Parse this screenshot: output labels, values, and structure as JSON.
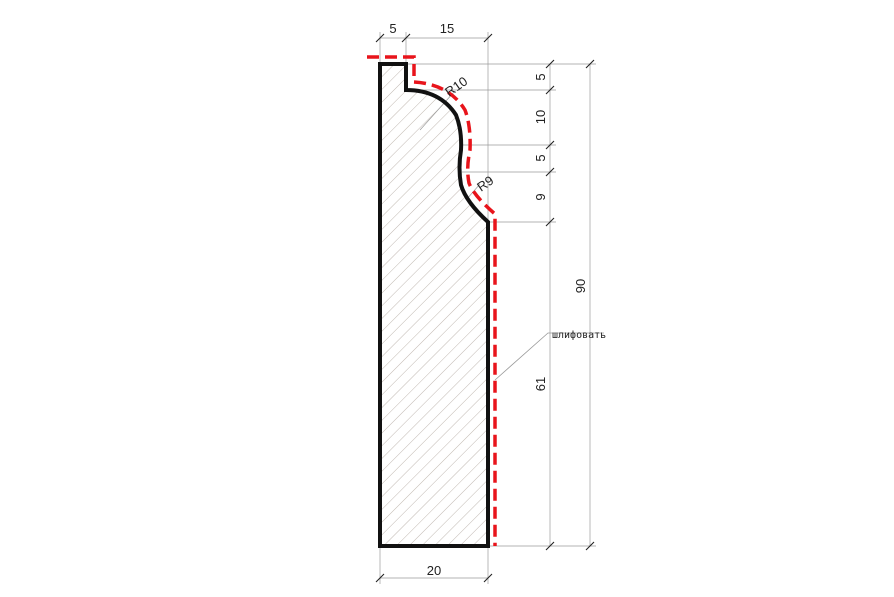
{
  "drawing": {
    "dimensions": {
      "top_left": "5",
      "top_right": "15",
      "bottom_width": "20",
      "right_seg_1": "5",
      "right_seg_2": "10",
      "right_seg_3": "5",
      "right_seg_4": "9",
      "right_seg_5": "61",
      "total_height": "90"
    },
    "radii": {
      "upper": "R10",
      "lower": "R9"
    },
    "note": "шлифовать",
    "colors": {
      "profile": "#111111",
      "sanding_line": "#e8141b",
      "hatch": "#b9b0a8",
      "dimension_line": "#9a9a9a"
    }
  }
}
